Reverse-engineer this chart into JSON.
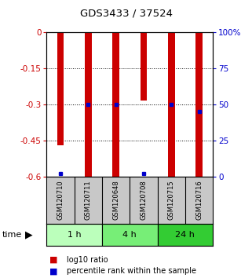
{
  "title": "GDS3433 / 37524",
  "samples": [
    "GSM120710",
    "GSM120711",
    "GSM120648",
    "GSM120708",
    "GSM120715",
    "GSM120716"
  ],
  "groups": [
    {
      "label": "1 h",
      "n": 2,
      "color": "#bbffbb"
    },
    {
      "label": "4 h",
      "n": 2,
      "color": "#77ee77"
    },
    {
      "label": "24 h",
      "n": 2,
      "color": "#33cc33"
    }
  ],
  "log10_ratio": [
    -0.47,
    -0.6,
    -0.6,
    -0.285,
    -0.6,
    -0.6
  ],
  "percentile_rank": [
    0.02,
    0.5,
    0.5,
    0.02,
    0.5,
    0.45
  ],
  "ylim": [
    -0.6,
    0.0
  ],
  "yticks": [
    0.0,
    -0.15,
    -0.3,
    -0.45,
    -0.6
  ],
  "ytick_labels": [
    "0",
    "-0.15",
    "-0.3",
    "-0.45",
    "-0.6"
  ],
  "right_yticks": [
    0.0,
    0.25,
    0.5,
    0.75,
    1.0
  ],
  "right_ytick_labels": [
    "0",
    "25",
    "50",
    "75",
    "100%"
  ],
  "bar_color": "#cc0000",
  "dot_color": "#0000cc",
  "bar_width": 0.25,
  "bg_color": "#ffffff",
  "label_area_color": "#c8c8c8",
  "grid_dotted": [
    -0.15,
    -0.3,
    -0.45
  ]
}
